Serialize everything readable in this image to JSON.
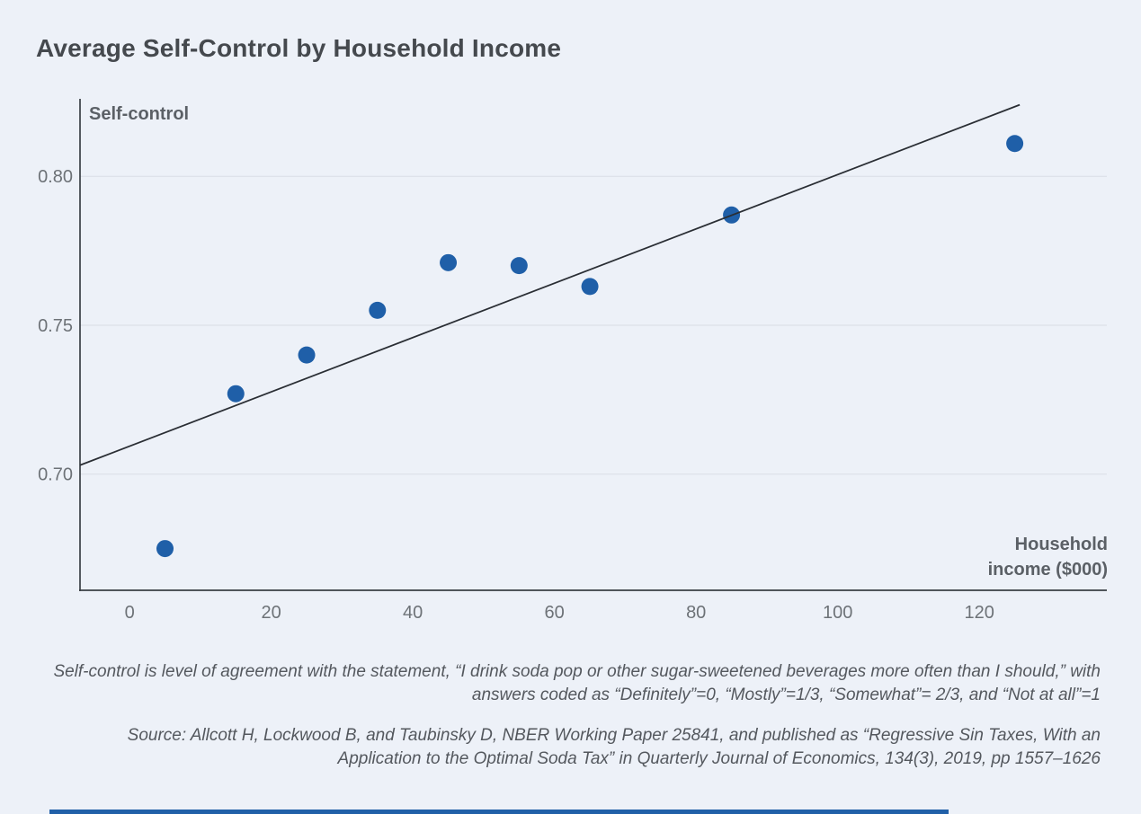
{
  "title": "Average Self-Control by Household Income",
  "colors": {
    "background": "#edf1f8",
    "title_text": "#45494e",
    "axis_title_text": "#5b6066",
    "tick_text": "#6d7277",
    "note_text": "#54585e",
    "point": "#1f5fa8",
    "trend_line": "#2a2e34",
    "axis": "#3a3f45",
    "gridline": "#d9dde5",
    "accent_bar": "#2160a8"
  },
  "chart_data": {
    "type": "scatter",
    "title": "Average Self-Control by Household Income",
    "ylabel": "Self-control",
    "xlabel": "Household income ($000)",
    "xlabel_lines": [
      "Household",
      "income ($000)"
    ],
    "x": [
      5,
      15,
      25,
      35,
      45,
      55,
      65,
      85,
      125
    ],
    "y": [
      0.675,
      0.727,
      0.74,
      0.755,
      0.771,
      0.77,
      0.763,
      0.787,
      0.811
    ],
    "xticks": [
      0,
      20,
      40,
      60,
      80,
      100,
      120
    ],
    "yticks": [
      0.7,
      0.75,
      0.8
    ],
    "ytick_labels": [
      "0.70",
      "0.75",
      "0.80"
    ],
    "xlim": [
      -7,
      138
    ],
    "ylim": [
      0.661,
      0.826
    ],
    "grid": "horizontal",
    "legend": "none",
    "trend_line": {
      "x1": -7,
      "y1": 0.703,
      "x2": 125.7,
      "y2": 0.824
    }
  },
  "notes": {
    "definition": "Self-control is level of agreement with the statement, “I drink soda pop or other sugar-sweetened beverages more often than I should,” with answers coded as “Definitely”=0, “Mostly”=1/3, “Somewhat”= 2/3, and “Not at all”=1",
    "source": "Source: Allcott H, Lockwood B, and Taubinsky D, NBER Working Paper 25841, and published as “Regressive Sin Taxes, With an Application to the Optimal Soda Tax” in Quarterly Journal of Economics, 134(3), 2019, pp 1557–1626"
  }
}
